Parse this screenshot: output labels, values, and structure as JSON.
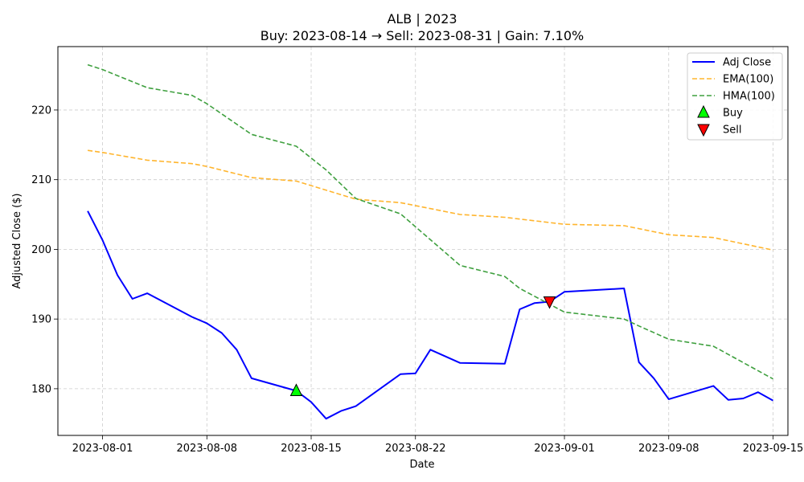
{
  "chart_data": {
    "type": "line",
    "title": "ALB | 2023",
    "subtitle": "Buy: 2023-08-14  →  Sell: 2023-08-31  |  Gain: 7.10%",
    "xlabel": "Date",
    "ylabel": "Adjusted Close ($)",
    "xlim": [
      "2023-07-29",
      "2023-09-16"
    ],
    "ylim": [
      173.3,
      229.1
    ],
    "x_ticks": [
      "2023-08-01",
      "2023-08-08",
      "2023-08-15",
      "2023-08-22",
      "2023-09-01",
      "2023-09-08",
      "2023-09-15"
    ],
    "y_ticks": [
      180,
      190,
      200,
      210,
      220
    ],
    "grid": true,
    "legend_position": "top-right",
    "series": [
      {
        "name": "Adj Close",
        "color": "#0000ff",
        "style": "solid",
        "points": [
          [
            "2023-07-31",
            205.5
          ],
          [
            "2023-08-01",
            201.3
          ],
          [
            "2023-08-02",
            196.3
          ],
          [
            "2023-08-03",
            192.9
          ],
          [
            "2023-08-04",
            193.7
          ],
          [
            "2023-08-07",
            190.3
          ],
          [
            "2023-08-08",
            189.4
          ],
          [
            "2023-08-09",
            188.0
          ],
          [
            "2023-08-10",
            185.6
          ],
          [
            "2023-08-11",
            181.5
          ],
          [
            "2023-08-14",
            179.7
          ],
          [
            "2023-08-15",
            178.1
          ],
          [
            "2023-08-16",
            175.7
          ],
          [
            "2023-08-17",
            176.8
          ],
          [
            "2023-08-18",
            177.5
          ],
          [
            "2023-08-21",
            182.1
          ],
          [
            "2023-08-22",
            182.2
          ],
          [
            "2023-08-23",
            185.6
          ],
          [
            "2023-08-25",
            183.7
          ],
          [
            "2023-08-28",
            183.6
          ],
          [
            "2023-08-29",
            191.4
          ],
          [
            "2023-08-30",
            192.3
          ],
          [
            "2023-08-31",
            192.5
          ],
          [
            "2023-09-01",
            193.9
          ],
          [
            "2023-09-05",
            194.4
          ],
          [
            "2023-09-06",
            183.8
          ],
          [
            "2023-09-07",
            181.5
          ],
          [
            "2023-09-08",
            178.5
          ],
          [
            "2023-09-11",
            180.4
          ],
          [
            "2023-09-12",
            178.4
          ],
          [
            "2023-09-13",
            178.6
          ],
          [
            "2023-09-14",
            179.5
          ],
          [
            "2023-09-15",
            178.3
          ]
        ]
      },
      {
        "name": "EMA(100)",
        "color": "#ffb52e",
        "style": "dashed",
        "points": [
          [
            "2023-07-31",
            214.2
          ],
          [
            "2023-08-01",
            213.9
          ],
          [
            "2023-08-04",
            212.8
          ],
          [
            "2023-08-07",
            212.3
          ],
          [
            "2023-08-08",
            211.9
          ],
          [
            "2023-08-11",
            210.3
          ],
          [
            "2023-08-14",
            209.8
          ],
          [
            "2023-08-18",
            207.2
          ],
          [
            "2023-08-21",
            206.7
          ],
          [
            "2023-08-25",
            205.0
          ],
          [
            "2023-08-28",
            204.6
          ],
          [
            "2023-09-01",
            203.6
          ],
          [
            "2023-09-05",
            203.4
          ],
          [
            "2023-09-08",
            202.1
          ],
          [
            "2023-09-11",
            201.7
          ],
          [
            "2023-09-15",
            199.9
          ]
        ]
      },
      {
        "name": "HMA(100)",
        "color": "#3fa03f",
        "style": "dashed",
        "points": [
          [
            "2023-07-31",
            226.5
          ],
          [
            "2023-08-01",
            225.8
          ],
          [
            "2023-08-04",
            223.2
          ],
          [
            "2023-08-07",
            222.1
          ],
          [
            "2023-08-08",
            220.9
          ],
          [
            "2023-08-11",
            216.5
          ],
          [
            "2023-08-14",
            214.8
          ],
          [
            "2023-08-16",
            211.4
          ],
          [
            "2023-08-18",
            207.3
          ],
          [
            "2023-08-21",
            205.1
          ],
          [
            "2023-08-25",
            197.7
          ],
          [
            "2023-08-28",
            196.1
          ],
          [
            "2023-08-29",
            194.4
          ],
          [
            "2023-09-01",
            191.0
          ],
          [
            "2023-09-05",
            190.0
          ],
          [
            "2023-09-06",
            189.0
          ],
          [
            "2023-09-08",
            187.1
          ],
          [
            "2023-09-11",
            186.1
          ],
          [
            "2023-09-15",
            181.4
          ]
        ]
      }
    ],
    "markers": [
      {
        "name": "Buy",
        "date": "2023-08-14",
        "value": 179.7,
        "shape": "triangle-up",
        "color": "#00ff00"
      },
      {
        "name": "Sell",
        "date": "2023-08-31",
        "value": 192.5,
        "shape": "triangle-down",
        "color": "#ff0000"
      }
    ]
  }
}
